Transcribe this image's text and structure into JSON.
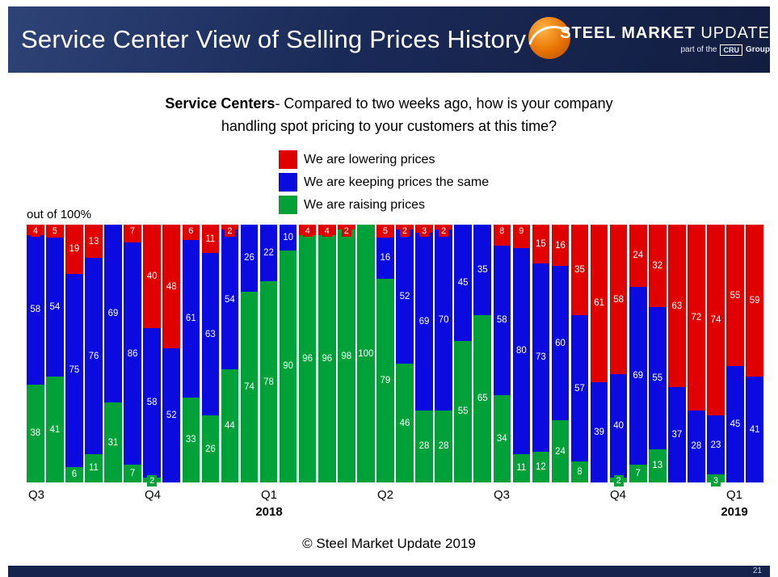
{
  "header": {
    "title": "Service Center View of Selling Prices History",
    "logo": {
      "steel": "STEEL",
      "market": "MARKET",
      "update": "UPDATE",
      "part_of": "part of the",
      "cru": "CRU",
      "group": "Group"
    }
  },
  "subtitle": {
    "bold": "Service Centers",
    "line1_rest": "- Compared to two weeks ago, how is your company",
    "line2": "handling spot pricing to your customers at this time?"
  },
  "footer": {
    "copyright": "© Steel Market Update 2019",
    "page_number": "21"
  },
  "chart_data": {
    "type": "bar",
    "stacked": true,
    "stack_total": 100,
    "ylim": [
      0,
      100
    ],
    "unit_note": "out of 100%",
    "legend_position": "top-center",
    "grid": false,
    "bars_count": 38,
    "series": [
      {
        "key": "lowering",
        "name": "We are lowering prices",
        "color": "#e00000",
        "values": [
          4,
          5,
          19,
          13,
          0,
          7,
          40,
          48,
          6,
          11,
          2,
          0,
          0,
          0,
          4,
          4,
          2,
          0,
          5,
          2,
          3,
          2,
          0,
          0,
          8,
          9,
          15,
          16,
          35,
          61,
          58,
          24,
          32,
          63,
          72,
          74,
          55,
          59
        ]
      },
      {
        "key": "same",
        "name": "We are keeping prices the same",
        "color": "#0b0be0",
        "values": [
          58,
          54,
          75,
          76,
          69,
          86,
          58,
          52,
          61,
          63,
          54,
          26,
          22,
          10,
          0,
          0,
          0,
          0,
          16,
          52,
          69,
          70,
          45,
          35,
          58,
          80,
          73,
          60,
          57,
          39,
          40,
          69,
          55,
          37,
          28,
          23,
          45,
          41
        ]
      },
      {
        "key": "raising",
        "name": "We are raising prices",
        "color": "#00a139",
        "values": [
          38,
          41,
          6,
          11,
          31,
          7,
          2,
          0,
          33,
          26,
          44,
          74,
          78,
          90,
          96,
          96,
          98,
          100,
          79,
          46,
          28,
          28,
          55,
          65,
          34,
          11,
          12,
          24,
          8,
          0,
          2,
          7,
          13,
          0,
          0,
          3,
          0,
          0
        ]
      }
    ],
    "x_axis": {
      "labels": [
        {
          "text": "Q3",
          "bar_index": 0
        },
        {
          "text": "Q4",
          "bar_index": 6
        },
        {
          "text": "Q1",
          "bar_index": 12,
          "year": "2018"
        },
        {
          "text": "Q2",
          "bar_index": 18
        },
        {
          "text": "Q3",
          "bar_index": 24
        },
        {
          "text": "Q4",
          "bar_index": 30
        },
        {
          "text": "Q1",
          "bar_index": 36,
          "year": "2019"
        }
      ]
    }
  }
}
